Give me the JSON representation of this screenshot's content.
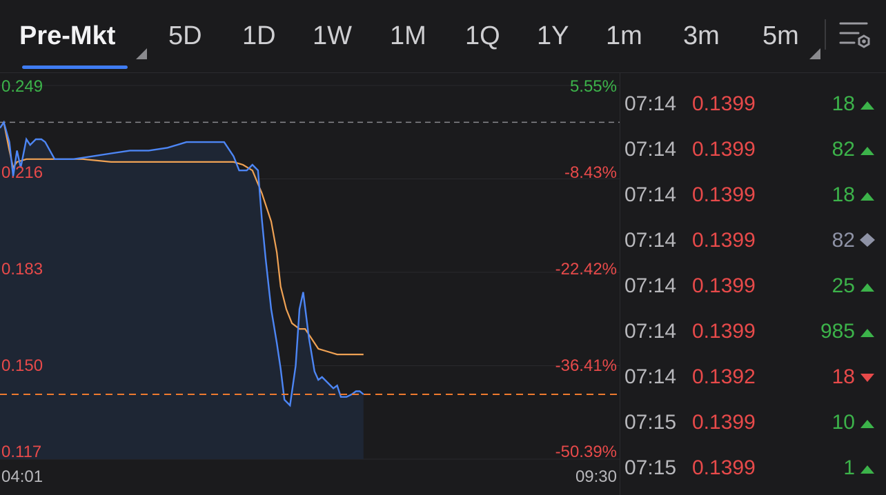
{
  "tabs": [
    {
      "label": "Pre-Mkt",
      "active": true
    },
    {
      "label": "5D"
    },
    {
      "label": "1D"
    },
    {
      "label": "1W"
    },
    {
      "label": "1M"
    },
    {
      "label": "1Q"
    },
    {
      "label": "1Y"
    },
    {
      "label": "1m"
    },
    {
      "label": "3m"
    },
    {
      "label": "5m"
    }
  ],
  "chart": {
    "price_labels": [
      "0.249",
      "0.216",
      "0.183",
      "0.150",
      "0.117"
    ],
    "pct_labels": [
      "5.55%",
      "-8.43%",
      "-22.42%",
      "-36.41%",
      "-50.39%"
    ],
    "time_start": "04:01",
    "time_end": "09:30",
    "colors": {
      "price_line": "#4d86f5",
      "avg_line": "#f0a254",
      "positive": "#3cb34a",
      "negative": "#e84a4a",
      "current_line": "#ee7a2e"
    }
  },
  "chart_data": {
    "type": "line",
    "title": "",
    "xlabel": "",
    "ylabel": "",
    "x_range": [
      "04:01",
      "09:30"
    ],
    "ylim": [
      0.117,
      0.249
    ],
    "previous_close": 0.236,
    "current_price": 0.1399,
    "series": [
      {
        "x": [
          "04:01",
          "04:03",
          "04:06",
          "04:08",
          "04:10",
          "04:12",
          "04:15",
          "04:17",
          "04:20",
          "04:23",
          "04:25",
          "04:30",
          "04:40",
          "04:50",
          "05:00",
          "05:10",
          "05:20",
          "05:30",
          "05:40",
          "05:50",
          "06:00",
          "06:05",
          "06:08",
          "06:12",
          "06:15",
          "06:18",
          "06:20",
          "06:22",
          "06:25",
          "06:28",
          "06:30",
          "06:32",
          "06:35",
          "06:38",
          "06:40",
          "06:42",
          "06:45",
          "06:48",
          "06:50",
          "06:52",
          "06:55",
          "06:58",
          "07:00",
          "07:02",
          "07:05",
          "07:08",
          "07:10",
          "07:12",
          "07:14"
        ],
        "values": [
          0.234,
          0.236,
          0.229,
          0.217,
          0.226,
          0.22,
          0.23,
          0.228,
          0.23,
          0.23,
          0.229,
          0.223,
          0.223,
          0.224,
          0.225,
          0.226,
          0.226,
          0.227,
          0.229,
          0.229,
          0.229,
          0.224,
          0.219,
          0.219,
          0.221,
          0.219,
          0.202,
          0.188,
          0.17,
          0.158,
          0.149,
          0.138,
          0.136,
          0.15,
          0.17,
          0.176,
          0.16,
          0.148,
          0.145,
          0.146,
          0.144,
          0.142,
          0.143,
          0.139,
          0.139,
          0.14,
          0.141,
          0.141,
          0.1399
        ]
      },
      {
        "x": [
          "04:01",
          "04:03",
          "04:06",
          "04:08",
          "04:10",
          "04:15",
          "04:20",
          "04:30",
          "04:45",
          "05:00",
          "05:30",
          "06:00",
          "06:05",
          "06:10",
          "06:15",
          "06:20",
          "06:25",
          "06:28",
          "06:30",
          "06:33",
          "06:36",
          "06:40",
          "06:43",
          "06:46",
          "06:50",
          "06:55",
          "07:00",
          "07:05",
          "07:14"
        ],
        "values": [
          0.234,
          0.236,
          0.226,
          0.22,
          0.222,
          0.223,
          0.223,
          0.223,
          0.223,
          0.222,
          0.222,
          0.222,
          0.222,
          0.221,
          0.219,
          0.211,
          0.201,
          0.19,
          0.178,
          0.17,
          0.165,
          0.163,
          0.163,
          0.16,
          0.156,
          0.155,
          0.154,
          0.154,
          0.154
        ]
      }
    ]
  },
  "trades": [
    {
      "time": "07:14",
      "price": "0.1399",
      "volume": "18",
      "dir": "up"
    },
    {
      "time": "07:14",
      "price": "0.1399",
      "volume": "82",
      "dir": "up"
    },
    {
      "time": "07:14",
      "price": "0.1399",
      "volume": "18",
      "dir": "up"
    },
    {
      "time": "07:14",
      "price": "0.1399",
      "volume": "82",
      "dir": "neutral"
    },
    {
      "time": "07:14",
      "price": "0.1399",
      "volume": "25",
      "dir": "up"
    },
    {
      "time": "07:14",
      "price": "0.1399",
      "volume": "985",
      "dir": "up"
    },
    {
      "time": "07:14",
      "price": "0.1392",
      "volume": "18",
      "dir": "down"
    },
    {
      "time": "07:15",
      "price": "0.1399",
      "volume": "10",
      "dir": "up"
    },
    {
      "time": "07:15",
      "price": "0.1399",
      "volume": "1",
      "dir": "up"
    }
  ]
}
